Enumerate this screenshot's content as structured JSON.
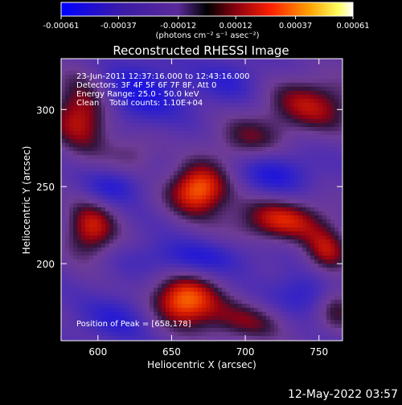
{
  "colorbar": {
    "tick_labels": [
      "-0.00061",
      "-0.00037",
      "-0.00012",
      "0.00012",
      "0.00037",
      "0.00061"
    ],
    "units_label": "(photons cm⁻² s⁻¹ asec⁻²)",
    "min": -0.00061,
    "max": 0.00061
  },
  "chart_data": {
    "type": "heatmap",
    "title": "Reconstructed RHESSI Image",
    "xlabel": "Heliocentric X (arcsec)",
    "ylabel": "Heliocentric Y (arcsec)",
    "xlim": [
      575,
      766
    ],
    "ylim": [
      150,
      333
    ],
    "x_ticks": [
      600,
      650,
      700,
      750
    ],
    "y_ticks": [
      200,
      250,
      300
    ],
    "x_tick_labels": [
      "600",
      "650",
      "700",
      "750"
    ],
    "y_tick_labels": [
      "200",
      "250",
      "300"
    ],
    "info_lines": [
      "23-Jun-2011 12:37:16.000 to 12:43:16.000",
      "Detectors: 3F 4F 5F 6F 7F 8F, Att 0",
      "Energy Range: 25.0 - 50.0 keV",
      "Clean    Total counts: 1.10E+04"
    ],
    "peak_label": "Position of Peak = [658,178]",
    "peak_position": [
      658,
      178
    ],
    "colormap": "blue-purple-red-yellow-white",
    "sources": [
      {
        "x": 668,
        "y": 248,
        "sx": 15,
        "sy": 12,
        "amp": 1.0
      },
      {
        "x": 658,
        "y": 176,
        "sx": 17,
        "sy": 12,
        "amp": 1.0
      },
      {
        "x": 724,
        "y": 228,
        "sx": 24,
        "sy": 11,
        "amp": 0.75
      },
      {
        "x": 755,
        "y": 207,
        "sx": 11,
        "sy": 11,
        "amp": 0.6
      },
      {
        "x": 595,
        "y": 222,
        "sx": 13,
        "sy": 14,
        "amp": 0.75
      },
      {
        "x": 590,
        "y": 298,
        "sx": 16,
        "sy": 18,
        "amp": 0.85
      },
      {
        "x": 745,
        "y": 303,
        "sx": 24,
        "sy": 14,
        "amp": 0.65
      },
      {
        "x": 700,
        "y": 280,
        "sx": 18,
        "sy": 11,
        "amp": 0.45
      },
      {
        "x": 700,
        "y": 162,
        "sx": 22,
        "sy": 10,
        "amp": 0.5
      },
      {
        "x": 762,
        "y": 172,
        "sx": 10,
        "sy": 12,
        "amp": 0.5
      },
      {
        "x": 625,
        "y": 272,
        "sx": 12,
        "sy": 10,
        "amp": 0.35
      }
    ],
    "sinks": [
      {
        "x": 625,
        "y": 310,
        "sx": 22,
        "sy": 14,
        "amp": 0.6
      },
      {
        "x": 720,
        "y": 258,
        "sx": 18,
        "sy": 10,
        "amp": 0.5
      },
      {
        "x": 665,
        "y": 204,
        "sx": 28,
        "sy": 8,
        "amp": 0.45
      },
      {
        "x": 610,
        "y": 250,
        "sx": 14,
        "sy": 8,
        "amp": 0.45
      },
      {
        "x": 740,
        "y": 180,
        "sx": 16,
        "sy": 10,
        "amp": 0.45
      },
      {
        "x": 615,
        "y": 165,
        "sx": 18,
        "sy": 10,
        "amp": 0.4
      },
      {
        "x": 690,
        "y": 318,
        "sx": 16,
        "sy": 10,
        "amp": 0.35
      }
    ]
  },
  "footer": {
    "timestamp": "12-May-2022 03:57"
  }
}
